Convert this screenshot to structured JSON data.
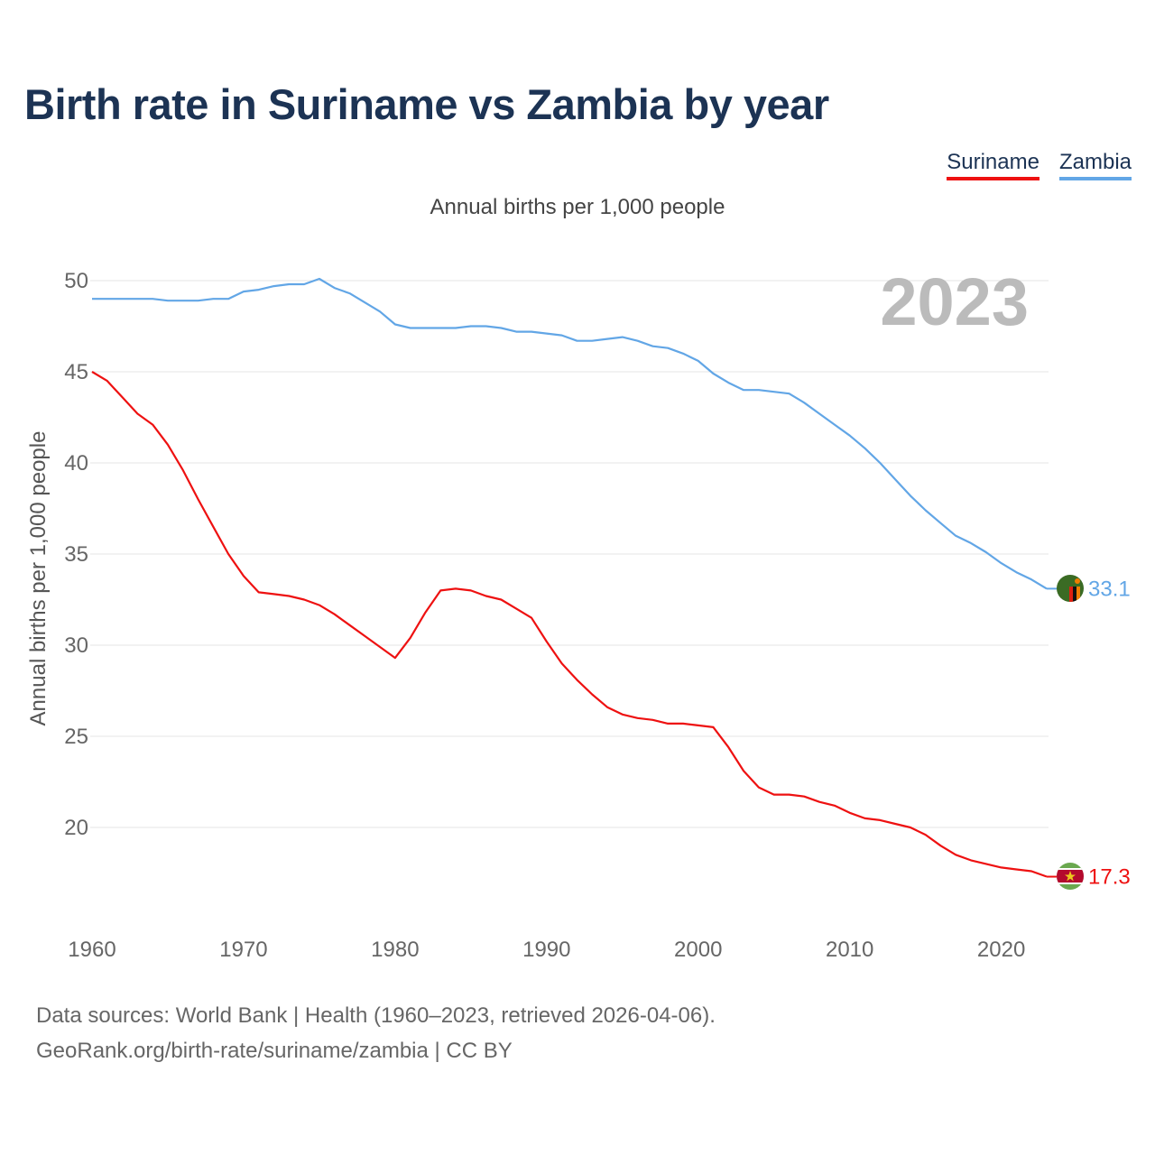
{
  "title": "Birth rate in Suriname vs Zambia by year",
  "subtitle": "Annual births per 1,000 people",
  "legend": [
    {
      "label": "Suriname",
      "color": "#ee1111"
    },
    {
      "label": "Zambia",
      "color": "#62a6e6"
    }
  ],
  "current_year": "2023",
  "footer": {
    "line1": "Data sources: World Bank | Health (1960–2023, retrieved 2026-04-06).",
    "line2": "GeoRank.org/birth-rate/suriname/zambia | CC BY"
  },
  "chart_data": {
    "type": "line",
    "title": "Birth rate in Suriname vs Zambia by year",
    "ylabel": "Annual births per 1,000 people",
    "xlabel": "",
    "xlim": [
      1960,
      2023
    ],
    "ylim": [
      15,
      51
    ],
    "yticks": [
      20,
      25,
      30,
      35,
      40,
      45,
      50
    ],
    "xticks": [
      1960,
      1970,
      1980,
      1990,
      2000,
      2010,
      2020
    ],
    "grid": true,
    "x": [
      1960,
      1961,
      1962,
      1963,
      1964,
      1965,
      1966,
      1967,
      1968,
      1969,
      1970,
      1971,
      1972,
      1973,
      1974,
      1975,
      1976,
      1977,
      1978,
      1979,
      1980,
      1981,
      1982,
      1983,
      1984,
      1985,
      1986,
      1987,
      1988,
      1989,
      1990,
      1991,
      1992,
      1993,
      1994,
      1995,
      1996,
      1997,
      1998,
      1999,
      2000,
      2001,
      2002,
      2003,
      2004,
      2005,
      2006,
      2007,
      2008,
      2009,
      2010,
      2011,
      2012,
      2013,
      2014,
      2015,
      2016,
      2017,
      2018,
      2019,
      2020,
      2021,
      2022,
      2023
    ],
    "series": [
      {
        "name": "Zambia",
        "color": "#62a6e6",
        "end_label": "33.1",
        "values": [
          49.0,
          49.0,
          49.0,
          49.0,
          49.0,
          48.9,
          48.9,
          48.9,
          49.0,
          49.0,
          49.4,
          49.5,
          49.7,
          49.8,
          49.8,
          50.1,
          49.6,
          49.3,
          48.8,
          48.3,
          47.6,
          47.4,
          47.4,
          47.4,
          47.4,
          47.5,
          47.5,
          47.4,
          47.2,
          47.2,
          47.1,
          47.0,
          46.7,
          46.7,
          46.8,
          46.9,
          46.7,
          46.4,
          46.3,
          46.0,
          45.6,
          44.9,
          44.4,
          44.0,
          44.0,
          43.9,
          43.8,
          43.3,
          42.7,
          42.1,
          41.5,
          40.8,
          40.0,
          39.1,
          38.2,
          37.4,
          36.7,
          36.0,
          35.6,
          35.1,
          34.5,
          34.0,
          33.6,
          33.1
        ]
      },
      {
        "name": "Suriname",
        "color": "#ee1111",
        "end_label": "17.3",
        "values": [
          45.0,
          44.5,
          43.6,
          42.7,
          42.1,
          41.0,
          39.6,
          38.0,
          36.5,
          35.0,
          33.8,
          32.9,
          32.8,
          32.7,
          32.5,
          32.2,
          31.7,
          31.1,
          30.5,
          29.9,
          29.3,
          30.4,
          31.8,
          33.0,
          33.1,
          33.0,
          32.7,
          32.5,
          32.0,
          31.5,
          30.2,
          29.0,
          28.1,
          27.3,
          26.6,
          26.2,
          26.0,
          25.9,
          25.7,
          25.7,
          25.6,
          25.5,
          24.4,
          23.1,
          22.2,
          21.8,
          21.8,
          21.7,
          21.4,
          21.2,
          20.8,
          20.5,
          20.4,
          20.2,
          20.0,
          19.6,
          19.0,
          18.5,
          18.2,
          18.0,
          17.8,
          17.7,
          17.6,
          17.3
        ]
      }
    ]
  }
}
